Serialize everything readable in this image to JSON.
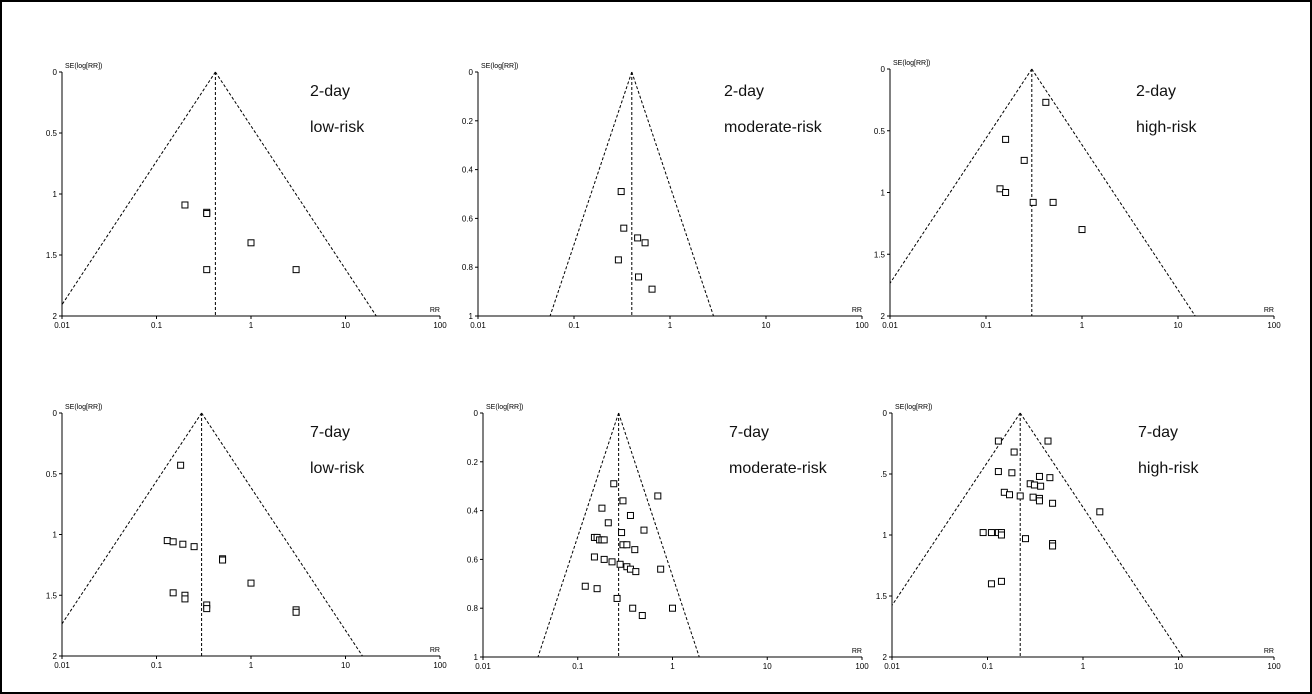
{
  "figure": {
    "background": "#ffffff",
    "border_color": "#000000"
  },
  "chart_data": [
    {
      "type": "scatter",
      "subtype": "funnel",
      "xscale": "log",
      "xlabel": "RR",
      "ylabel": "SE(log[RR])",
      "xlim": [
        0.01,
        100
      ],
      "ylim": [
        0,
        2
      ],
      "y_inverted": true,
      "xticks": [
        "0.01",
        "0.1",
        "1",
        "10",
        "100"
      ],
      "yticks": [
        "0",
        "0.5",
        "1",
        "1.5",
        "2"
      ],
      "ytick_values": [
        0,
        0.5,
        1,
        1.5,
        2
      ],
      "pooled_rr": 0.42,
      "annotation": [
        "2-day",
        "low-risk"
      ],
      "points": [
        {
          "x": 0.2,
          "y": 1.09
        },
        {
          "x": 0.34,
          "y": 1.15
        },
        {
          "x": 0.34,
          "y": 1.16
        },
        {
          "x": 1.0,
          "y": 1.4
        },
        {
          "x": 0.34,
          "y": 1.62
        },
        {
          "x": 3.0,
          "y": 1.62
        }
      ]
    },
    {
      "type": "scatter",
      "subtype": "funnel",
      "xscale": "log",
      "xlabel": "RR",
      "ylabel": "SE(log[RR])",
      "xlim": [
        0.01,
        100
      ],
      "ylim": [
        0,
        1
      ],
      "y_inverted": true,
      "xticks": [
        "0.01",
        "0.1",
        "1",
        "10",
        "100"
      ],
      "yticks": [
        "0",
        "0.2",
        "0.4",
        "0.6",
        "0.8",
        "1"
      ],
      "ytick_values": [
        0,
        0.2,
        0.4,
        0.6,
        0.8,
        1
      ],
      "pooled_rr": 0.4,
      "annotation": [
        "2-day",
        "moderate-risk"
      ],
      "points": [
        {
          "x": 0.31,
          "y": 0.49
        },
        {
          "x": 0.33,
          "y": 0.64
        },
        {
          "x": 0.46,
          "y": 0.68
        },
        {
          "x": 0.55,
          "y": 0.7
        },
        {
          "x": 0.29,
          "y": 0.77
        },
        {
          "x": 0.47,
          "y": 0.84
        },
        {
          "x": 0.65,
          "y": 0.89
        }
      ]
    },
    {
      "type": "scatter",
      "subtype": "funnel",
      "xscale": "log",
      "xlabel": "RR",
      "ylabel": "SE(log[RR])",
      "xlim": [
        0.01,
        100
      ],
      "ylim": [
        0,
        2
      ],
      "y_inverted": true,
      "xticks": [
        "0.01",
        "0.1",
        "1",
        "10",
        "100"
      ],
      "yticks": [
        "0",
        "0.5",
        "1",
        "1.5",
        "2"
      ],
      "ytick_values": [
        0,
        0.5,
        1,
        1.5,
        2
      ],
      "pooled_rr": 0.3,
      "annotation": [
        "2-day",
        "high-risk"
      ],
      "points": [
        {
          "x": 0.42,
          "y": 0.27
        },
        {
          "x": 0.16,
          "y": 0.57
        },
        {
          "x": 0.25,
          "y": 0.74
        },
        {
          "x": 0.14,
          "y": 0.97
        },
        {
          "x": 0.16,
          "y": 1.0
        },
        {
          "x": 0.31,
          "y": 1.08
        },
        {
          "x": 0.5,
          "y": 1.08
        },
        {
          "x": 1.0,
          "y": 1.3
        }
      ]
    },
    {
      "type": "scatter",
      "subtype": "funnel",
      "xscale": "log",
      "xlabel": "RR",
      "ylabel": "SE(log[RR])",
      "xlim": [
        0.01,
        100
      ],
      "ylim": [
        0,
        2
      ],
      "y_inverted": true,
      "xticks": [
        "0.01",
        "0.1",
        "1",
        "10",
        "100"
      ],
      "yticks": [
        "0",
        "0.5",
        "1",
        "1.5",
        "2"
      ],
      "ytick_values": [
        0,
        0.5,
        1,
        1.5,
        2
      ],
      "pooled_rr": 0.3,
      "annotation": [
        "7-day",
        "low-risk"
      ],
      "points": [
        {
          "x": 0.18,
          "y": 0.43
        },
        {
          "x": 0.13,
          "y": 1.05
        },
        {
          "x": 0.15,
          "y": 1.06
        },
        {
          "x": 0.19,
          "y": 1.08
        },
        {
          "x": 0.25,
          "y": 1.1
        },
        {
          "x": 0.5,
          "y": 1.2
        },
        {
          "x": 0.5,
          "y": 1.21
        },
        {
          "x": 1.0,
          "y": 1.4
        },
        {
          "x": 0.15,
          "y": 1.48
        },
        {
          "x": 0.2,
          "y": 1.5
        },
        {
          "x": 0.2,
          "y": 1.53
        },
        {
          "x": 0.34,
          "y": 1.58
        },
        {
          "x": 0.34,
          "y": 1.61
        },
        {
          "x": 3.0,
          "y": 1.62
        },
        {
          "x": 3.0,
          "y": 1.64
        }
      ]
    },
    {
      "type": "scatter",
      "subtype": "funnel",
      "xscale": "log",
      "xlabel": "RR",
      "ylabel": "SE(log[RR])",
      "xlim": [
        0.01,
        100
      ],
      "ylim": [
        0,
        1
      ],
      "y_inverted": true,
      "xticks": [
        "0.01",
        "0.1",
        "1",
        "10",
        "100"
      ],
      "yticks": [
        "0",
        "0.2",
        "0.4",
        "0.6",
        "0.8",
        "1"
      ],
      "ytick_values": [
        0,
        0.2,
        0.4,
        0.6,
        0.8,
        1
      ],
      "pooled_rr": 0.27,
      "annotation": [
        "7-day",
        "moderate-risk"
      ],
      "points": [
        {
          "x": 0.24,
          "y": 0.29
        },
        {
          "x": 0.7,
          "y": 0.34
        },
        {
          "x": 0.3,
          "y": 0.36
        },
        {
          "x": 0.18,
          "y": 0.39
        },
        {
          "x": 0.36,
          "y": 0.42
        },
        {
          "x": 0.21,
          "y": 0.45
        },
        {
          "x": 0.5,
          "y": 0.48
        },
        {
          "x": 0.29,
          "y": 0.49
        },
        {
          "x": 0.15,
          "y": 0.51
        },
        {
          "x": 0.16,
          "y": 0.51
        },
        {
          "x": 0.17,
          "y": 0.52
        },
        {
          "x": 0.18,
          "y": 0.52
        },
        {
          "x": 0.19,
          "y": 0.52
        },
        {
          "x": 0.3,
          "y": 0.54
        },
        {
          "x": 0.33,
          "y": 0.54
        },
        {
          "x": 0.4,
          "y": 0.56
        },
        {
          "x": 0.15,
          "y": 0.59
        },
        {
          "x": 0.19,
          "y": 0.6
        },
        {
          "x": 0.23,
          "y": 0.61
        },
        {
          "x": 0.28,
          "y": 0.62
        },
        {
          "x": 0.33,
          "y": 0.63
        },
        {
          "x": 0.36,
          "y": 0.64
        },
        {
          "x": 0.41,
          "y": 0.65
        },
        {
          "x": 0.75,
          "y": 0.64
        },
        {
          "x": 0.12,
          "y": 0.71
        },
        {
          "x": 0.16,
          "y": 0.72
        },
        {
          "x": 0.26,
          "y": 0.76
        },
        {
          "x": 0.38,
          "y": 0.8
        },
        {
          "x": 1.0,
          "y": 0.8
        },
        {
          "x": 0.48,
          "y": 0.83
        }
      ]
    },
    {
      "type": "scatter",
      "subtype": "funnel",
      "xscale": "log",
      "xlabel": "RR",
      "ylabel": "SE(log[RR])",
      "xlim": [
        0.01,
        100
      ],
      "ylim": [
        0,
        2
      ],
      "y_inverted": true,
      "xticks": [
        "0.01",
        "0.1",
        "1",
        "10",
        "100"
      ],
      "yticks": [
        "0",
        ".5",
        "1",
        "1.5",
        "2"
      ],
      "ytick_values": [
        0,
        0.5,
        1,
        1.5,
        2
      ],
      "pooled_rr": 0.22,
      "annotation": [
        "7-day",
        "high-risk"
      ],
      "points": [
        {
          "x": 0.13,
          "y": 0.23
        },
        {
          "x": 0.43,
          "y": 0.23
        },
        {
          "x": 0.19,
          "y": 0.32
        },
        {
          "x": 0.13,
          "y": 0.48
        },
        {
          "x": 0.18,
          "y": 0.49
        },
        {
          "x": 0.35,
          "y": 0.52
        },
        {
          "x": 0.45,
          "y": 0.53
        },
        {
          "x": 0.28,
          "y": 0.58
        },
        {
          "x": 0.31,
          "y": 0.59
        },
        {
          "x": 0.36,
          "y": 0.6
        },
        {
          "x": 0.15,
          "y": 0.65
        },
        {
          "x": 0.17,
          "y": 0.67
        },
        {
          "x": 0.22,
          "y": 0.68
        },
        {
          "x": 0.3,
          "y": 0.69
        },
        {
          "x": 0.35,
          "y": 0.7
        },
        {
          "x": 0.35,
          "y": 0.72
        },
        {
          "x": 0.48,
          "y": 0.74
        },
        {
          "x": 1.5,
          "y": 0.81
        },
        {
          "x": 0.09,
          "y": 0.98
        },
        {
          "x": 0.11,
          "y": 0.98
        },
        {
          "x": 0.13,
          "y": 0.98
        },
        {
          "x": 0.14,
          "y": 0.98
        },
        {
          "x": 0.14,
          "y": 1.0
        },
        {
          "x": 0.25,
          "y": 1.03
        },
        {
          "x": 0.48,
          "y": 1.07
        },
        {
          "x": 0.48,
          "y": 1.09
        },
        {
          "x": 0.11,
          "y": 1.4
        },
        {
          "x": 0.14,
          "y": 1.38
        }
      ]
    }
  ]
}
